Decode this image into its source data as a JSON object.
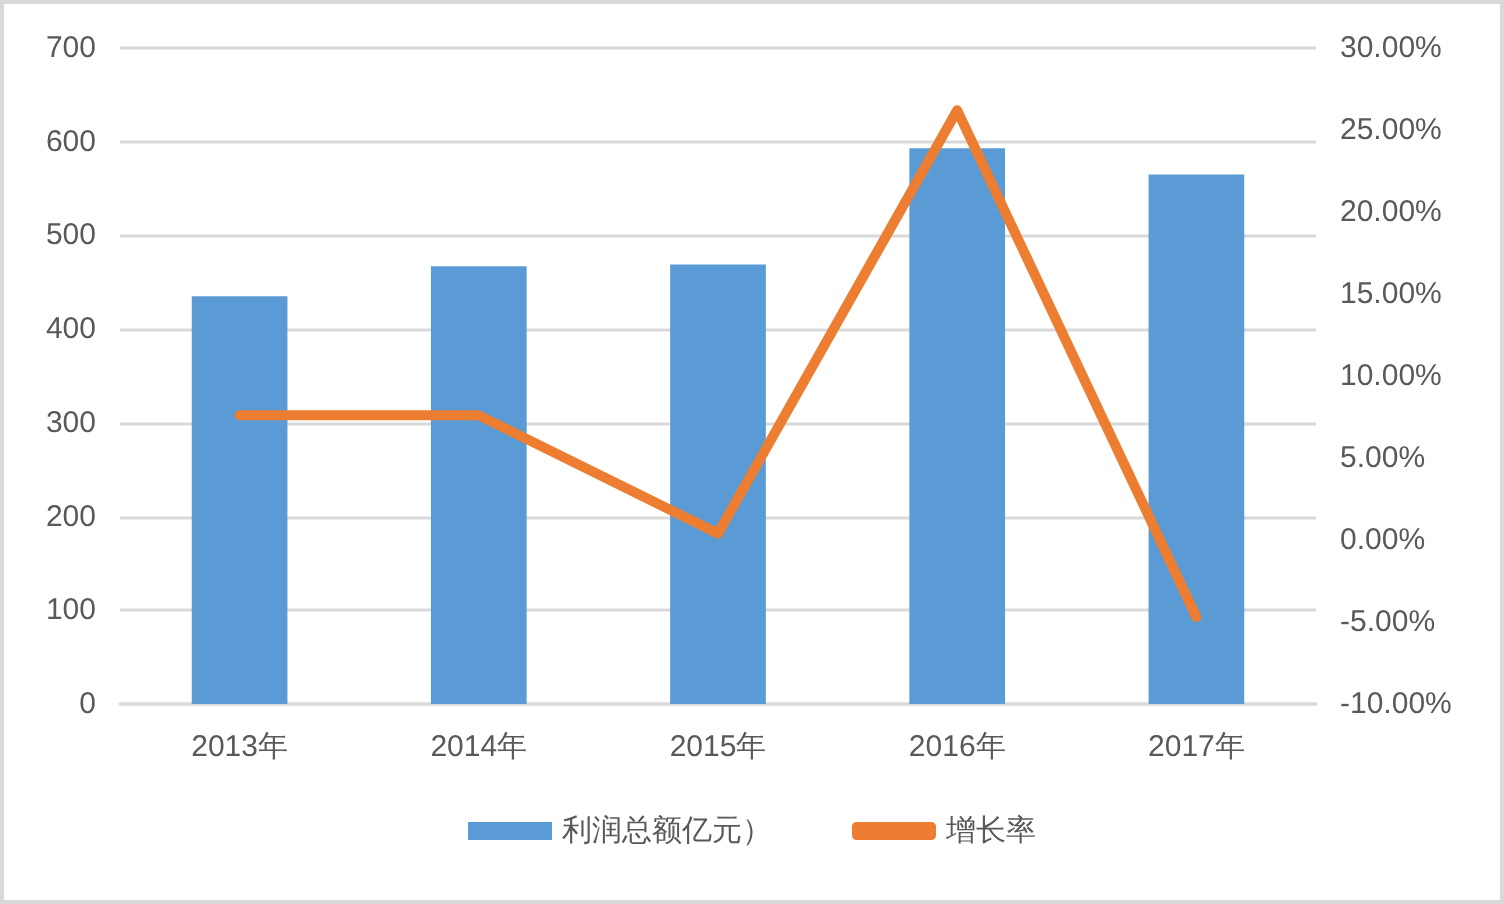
{
  "chart_data": {
    "type": "bar",
    "categories": [
      "2013年",
      "2014年",
      "2015年",
      "2016年",
      "2017年"
    ],
    "series": [
      {
        "name": "利润总额亿元）",
        "color": "#5b9bd5",
        "values": [
          435,
          467,
          469,
          593,
          565
        ]
      },
      {
        "name": "增长率",
        "type": "line",
        "axis": "y2",
        "color": "#ed7d31",
        "values": [
          7.6,
          7.6,
          0.4,
          26.2,
          -4.7
        ]
      }
    ],
    "ylim": [
      0,
      700
    ],
    "yticks": [
      0,
      100,
      200,
      300,
      400,
      500,
      600,
      700
    ],
    "y2lim": [
      -10,
      30
    ],
    "y2ticks": [
      {
        "value": -10,
        "label": "-10.00%"
      },
      {
        "value": -5,
        "label": "-5.00%"
      },
      {
        "value": 0,
        "label": "0.00%"
      },
      {
        "value": 5,
        "label": "5.00%"
      },
      {
        "value": 10,
        "label": "10.00%"
      },
      {
        "value": 15,
        "label": "15.00%"
      },
      {
        "value": 20,
        "label": "20.00%"
      },
      {
        "value": 25,
        "label": "25.00%"
      },
      {
        "value": 30,
        "label": "30.00%"
      }
    ],
    "grid": "y",
    "legend": "bottom",
    "marker": "none",
    "line_style": "solid"
  }
}
